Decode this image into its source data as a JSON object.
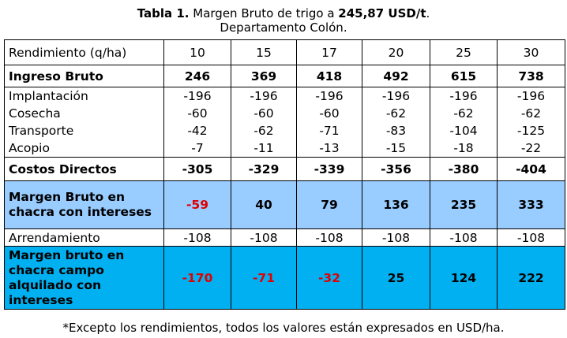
{
  "title": {
    "label_bold": "Tabla 1.",
    "text": " Margen Bruto de trigo a ",
    "price_bold": "245,87 USD/t",
    "suffix": ".",
    "subtitle": "Departamento Colón."
  },
  "table": {
    "header": {
      "label": "Rendimiento (q/ha)",
      "values": [
        "10",
        "15",
        "17",
        "20",
        "25",
        "30"
      ]
    },
    "rows": [
      {
        "key": "ingreso",
        "label": "Ingreso Bruto",
        "values": [
          "246",
          "369",
          "418",
          "492",
          "615",
          "738"
        ]
      },
      {
        "key": "implantacion",
        "label": "Implantación",
        "values": [
          "-196",
          "-196",
          "-196",
          "-196",
          "-196",
          "-196"
        ]
      },
      {
        "key": "cosecha",
        "label": "Cosecha",
        "values": [
          "-60",
          "-60",
          "-60",
          "-62",
          "-62",
          "-62"
        ]
      },
      {
        "key": "transporte",
        "label": "Transporte",
        "values": [
          "-42",
          "-62",
          "-71",
          "-83",
          "-104",
          "-125"
        ]
      },
      {
        "key": "acopio",
        "label": "Acopio",
        "values": [
          "-7",
          "-11",
          "-13",
          "-15",
          "-18",
          "-22"
        ]
      },
      {
        "key": "costos",
        "label": "Costos Directos",
        "values": [
          "-305",
          "-329",
          "-339",
          "-356",
          "-380",
          "-404"
        ]
      },
      {
        "key": "margen1",
        "label": "Margen Bruto en chacra con intereses",
        "values": [
          "-59",
          "40",
          "79",
          "136",
          "235",
          "333"
        ]
      },
      {
        "key": "arrendamiento",
        "label": "Arrendamiento",
        "values": [
          "-108",
          "-108",
          "-108",
          "-108",
          "-108",
          "-108"
        ]
      },
      {
        "key": "margen2",
        "label": "Margen bruto en chacra campo alquilado con intereses",
        "values": [
          "-170",
          "-71",
          "-32",
          "25",
          "124",
          "222"
        ]
      }
    ]
  },
  "footnote": "*Excepto los rendimientos, todos los valores están expresados en USD/ha.",
  "colors": {
    "margen1_bg": "#99ccff",
    "margen2_bg": "#00b0f0",
    "negative_text": "#e00000"
  }
}
